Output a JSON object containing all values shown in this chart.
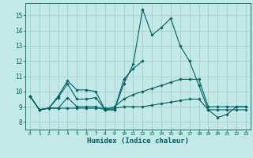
{
  "xlabel": "Humidex (Indice chaleur)",
  "background_color": "#c2e8e8",
  "grid_color": "#a8cccc",
  "line_color": "#006060",
  "xlim": [
    -0.5,
    23.5
  ],
  "ylim": [
    7.5,
    15.8
  ],
  "yticks": [
    8,
    9,
    10,
    11,
    12,
    13,
    14,
    15
  ],
  "xticks": [
    0,
    1,
    2,
    3,
    4,
    5,
    6,
    7,
    8,
    9,
    10,
    11,
    12,
    13,
    14,
    15,
    16,
    17,
    18,
    19,
    20,
    21,
    22,
    23
  ],
  "series": [
    [
      9.7,
      8.8,
      8.9,
      9.7,
      10.7,
      10.1,
      10.1,
      10.0,
      8.8,
      8.8,
      10.5,
      11.8,
      15.4,
      13.7,
      14.2,
      14.8,
      13.0,
      12.0,
      10.4,
      8.8,
      8.3,
      8.5,
      9.0,
      9.0
    ],
    [
      9.7,
      8.8,
      8.9,
      9.6,
      10.5,
      9.5,
      9.5,
      9.6,
      8.8,
      8.8,
      10.8,
      11.5,
      12.0,
      null,
      null,
      null,
      null,
      null,
      null,
      null,
      null,
      null,
      null,
      null
    ],
    [
      9.7,
      8.8,
      8.9,
      8.9,
      9.6,
      9.0,
      9.0,
      9.0,
      8.8,
      9.0,
      9.5,
      9.8,
      10.0,
      10.2,
      10.4,
      10.6,
      10.8,
      10.8,
      10.8,
      9.0,
      9.0,
      9.0,
      9.0,
      9.0
    ],
    [
      9.7,
      8.8,
      8.9,
      8.9,
      8.9,
      8.9,
      8.9,
      8.9,
      8.9,
      8.9,
      9.0,
      9.0,
      9.0,
      9.1,
      9.2,
      9.3,
      9.4,
      9.5,
      9.5,
      8.8,
      8.8,
      8.8,
      8.8,
      8.8
    ]
  ]
}
